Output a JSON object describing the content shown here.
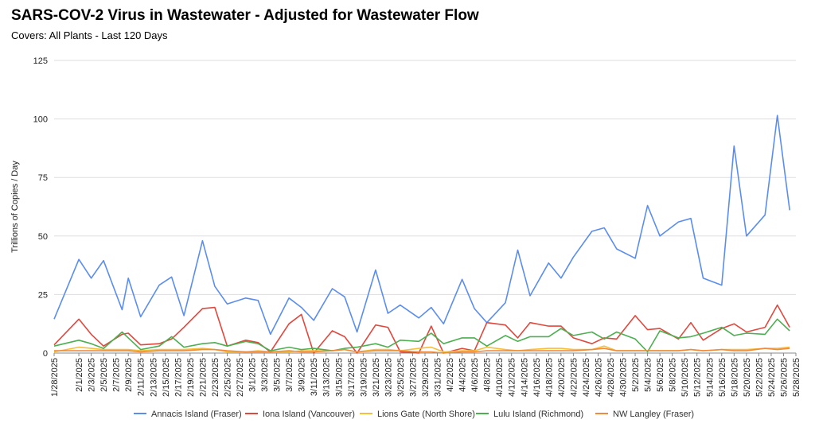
{
  "header": {
    "title": "SARS-COV-2 Virus in Wastewater - Adjusted for Wastewater Flow",
    "subtitle": "Covers: All Plants - Last 120 Days"
  },
  "chart_data": {
    "type": "line",
    "ylabel": "Trillions of Copies / Day",
    "ylim": [
      0,
      125
    ],
    "yticks": [
      0,
      25,
      50,
      75,
      100,
      125
    ],
    "grid": "horizontal",
    "legend_position": "bottom",
    "xtick_labels": [
      "1/28/2025",
      "2/1/2025",
      "2/3/2025",
      "2/5/2025",
      "2/7/2025",
      "2/9/2025",
      "2/11/2025",
      "2/13/2025",
      "2/15/2025",
      "2/17/2025",
      "2/19/2025",
      "2/21/2025",
      "2/23/2025",
      "2/25/2025",
      "2/27/2025",
      "3/1/2025",
      "3/3/2025",
      "3/5/2025",
      "3/7/2025",
      "3/9/2025",
      "3/11/2025",
      "3/13/2025",
      "3/15/2025",
      "3/17/2025",
      "3/19/2025",
      "3/21/2025",
      "3/23/2025",
      "3/25/2025",
      "3/27/2025",
      "3/29/2025",
      "3/31/2025",
      "4/2/2025",
      "4/4/2025",
      "4/6/2025",
      "4/8/2025",
      "4/10/2025",
      "4/12/2025",
      "4/14/2025",
      "4/16/2025",
      "4/18/2025",
      "4/20/2025",
      "4/22/2025",
      "4/24/2025",
      "4/26/2025",
      "4/28/2025",
      "4/30/2025",
      "5/2/2025",
      "5/4/2025",
      "5/6/2025",
      "5/8/2025",
      "5/10/2025",
      "5/12/2025",
      "5/14/2025",
      "5/16/2025",
      "5/18/2025",
      "5/20/2025",
      "5/22/2025",
      "5/24/2025",
      "5/26/2025",
      "5/28/2025"
    ],
    "series": [
      {
        "name": "Annacis Island (Fraser)",
        "color": "#5b8def",
        "points": [
          [
            "1/28/2025",
            14.5
          ],
          [
            "2/1/2025",
            40
          ],
          [
            "2/3/2025",
            32
          ],
          [
            "2/5/2025",
            39.5
          ],
          [
            "2/8/2025",
            18.5
          ],
          [
            "2/9/2025",
            32
          ],
          [
            "2/11/2025",
            15.5
          ],
          [
            "2/14/2025",
            29
          ],
          [
            "2/16/2025",
            32.5
          ],
          [
            "2/18/2025",
            16
          ],
          [
            "2/21/2025",
            48
          ],
          [
            "2/23/2025",
            28.5
          ],
          [
            "2/25/2025",
            21
          ],
          [
            "2/28/2025",
            23.5
          ],
          [
            "3/2/2025",
            22.5
          ],
          [
            "3/4/2025",
            8
          ],
          [
            "3/7/2025",
            23.5
          ],
          [
            "3/9/2025",
            19.5
          ],
          [
            "3/11/2025",
            14
          ],
          [
            "3/14/2025",
            27.5
          ],
          [
            "3/16/2025",
            24
          ],
          [
            "3/18/2025",
            9
          ],
          [
            "3/21/2025",
            35.5
          ],
          [
            "3/23/2025",
            17
          ],
          [
            "3/25/2025",
            20.5
          ],
          [
            "3/28/2025",
            15
          ],
          [
            "3/30/2025",
            19.5
          ],
          [
            "4/1/2025",
            12.5
          ],
          [
            "4/4/2025",
            31.5
          ],
          [
            "4/6/2025",
            19
          ],
          [
            "4/8/2025",
            13
          ],
          [
            "4/11/2025",
            21.5
          ],
          [
            "4/13/2025",
            44
          ],
          [
            "4/15/2025",
            24.5
          ],
          [
            "4/18/2025",
            38.5
          ],
          [
            "4/20/2025",
            32
          ],
          [
            "4/22/2025",
            41
          ],
          [
            "4/25/2025",
            52
          ],
          [
            "4/27/2025",
            53.5
          ],
          [
            "4/29/2025",
            44.5
          ],
          [
            "5/2/2025",
            40.5
          ],
          [
            "5/4/2025",
            63
          ],
          [
            "5/6/2025",
            50
          ],
          [
            "5/9/2025",
            56
          ],
          [
            "5/11/2025",
            57.5
          ],
          [
            "5/13/2025",
            32
          ],
          [
            "5/16/2025",
            29
          ],
          [
            "5/18/2025",
            88.5
          ],
          [
            "5/20/2025",
            50
          ],
          [
            "5/23/2025",
            59
          ],
          [
            "5/25/2025",
            101.5
          ],
          [
            "5/27/2025",
            61
          ]
        ]
      },
      {
        "name": "Iona Island (Vancouver)",
        "color": "#e0483e",
        "points": [
          [
            "1/28/2025",
            3.5
          ],
          [
            "2/1/2025",
            14.5
          ],
          [
            "2/3/2025",
            8
          ],
          [
            "2/5/2025",
            3
          ],
          [
            "2/8/2025",
            8
          ],
          [
            "2/9/2025",
            8.5
          ],
          [
            "2/11/2025",
            3.5
          ],
          [
            "2/14/2025",
            4
          ],
          [
            "2/16/2025",
            6
          ],
          [
            "2/18/2025",
            11
          ],
          [
            "2/21/2025",
            19
          ],
          [
            "2/23/2025",
            19.5
          ],
          [
            "2/25/2025",
            3
          ],
          [
            "2/28/2025",
            5.5
          ],
          [
            "3/2/2025",
            4.5
          ],
          [
            "3/4/2025",
            0.5
          ],
          [
            "3/7/2025",
            12.5
          ],
          [
            "3/9/2025",
            16.5
          ],
          [
            "3/11/2025",
            0
          ],
          [
            "3/14/2025",
            9.5
          ],
          [
            "3/16/2025",
            7
          ],
          [
            "3/18/2025",
            0
          ],
          [
            "3/21/2025",
            12
          ],
          [
            "3/23/2025",
            11
          ],
          [
            "3/25/2025",
            0.5
          ],
          [
            "3/28/2025",
            0
          ],
          [
            "3/30/2025",
            11.5
          ],
          [
            "4/1/2025",
            0
          ],
          [
            "4/4/2025",
            2
          ],
          [
            "4/6/2025",
            1
          ],
          [
            "4/8/2025",
            13
          ],
          [
            "4/11/2025",
            12
          ],
          [
            "4/13/2025",
            6.5
          ],
          [
            "4/15/2025",
            13
          ],
          [
            "4/18/2025",
            11.5
          ],
          [
            "4/20/2025",
            11.5
          ],
          [
            "4/22/2025",
            6.5
          ],
          [
            "4/25/2025",
            4
          ],
          [
            "4/27/2025",
            6.5
          ],
          [
            "4/29/2025",
            6
          ],
          [
            "5/2/2025",
            16
          ],
          [
            "5/4/2025",
            10
          ],
          [
            "5/6/2025",
            10.5
          ],
          [
            "5/9/2025",
            6
          ],
          [
            "5/11/2025",
            13
          ],
          [
            "5/13/2025",
            5.5
          ],
          [
            "5/16/2025",
            10.5
          ],
          [
            "5/18/2025",
            12.5
          ],
          [
            "5/20/2025",
            9
          ],
          [
            "5/23/2025",
            11
          ],
          [
            "5/25/2025",
            20.5
          ],
          [
            "5/27/2025",
            11
          ]
        ]
      },
      {
        "name": "Lions Gate (North Shore)",
        "color": "#f5bf3c",
        "points": [
          [
            "1/28/2025",
            0.5
          ],
          [
            "2/1/2025",
            2.5
          ],
          [
            "2/3/2025",
            2
          ],
          [
            "2/5/2025",
            1.5
          ],
          [
            "2/8/2025",
            1.5
          ],
          [
            "2/9/2025",
            1.5
          ],
          [
            "2/11/2025",
            1
          ],
          [
            "2/14/2025",
            1.5
          ],
          [
            "2/16/2025",
            1.5
          ],
          [
            "2/18/2025",
            1.5
          ],
          [
            "2/21/2025",
            2
          ],
          [
            "2/23/2025",
            1.5
          ],
          [
            "2/25/2025",
            0.5
          ],
          [
            "2/28/2025",
            0.5
          ],
          [
            "3/2/2025",
            1
          ],
          [
            "3/4/2025",
            0.5
          ],
          [
            "3/7/2025",
            0.5
          ],
          [
            "3/9/2025",
            1
          ],
          [
            "3/11/2025",
            1
          ],
          [
            "3/14/2025",
            1
          ],
          [
            "3/16/2025",
            1.5
          ],
          [
            "3/18/2025",
            0.5
          ],
          [
            "3/21/2025",
            1.5
          ],
          [
            "3/23/2025",
            1.5
          ],
          [
            "3/25/2025",
            1
          ],
          [
            "3/28/2025",
            2
          ],
          [
            "3/30/2025",
            2.5
          ],
          [
            "4/1/2025",
            0.5
          ],
          [
            "4/4/2025",
            1
          ],
          [
            "4/6/2025",
            1
          ],
          [
            "4/8/2025",
            2.5
          ],
          [
            "4/11/2025",
            1.5
          ],
          [
            "4/13/2025",
            1
          ],
          [
            "4/15/2025",
            1.5
          ],
          [
            "4/18/2025",
            2
          ],
          [
            "4/20/2025",
            2
          ],
          [
            "4/22/2025",
            1.5
          ],
          [
            "4/25/2025",
            1.5
          ],
          [
            "4/27/2025",
            3
          ],
          [
            "4/29/2025",
            1
          ],
          [
            "5/2/2025",
            1
          ],
          [
            "5/4/2025",
            1
          ],
          [
            "5/6/2025",
            1
          ],
          [
            "5/9/2025",
            1
          ],
          [
            "5/11/2025",
            1.5
          ],
          [
            "5/13/2025",
            1
          ],
          [
            "5/16/2025",
            1.5
          ],
          [
            "5/18/2025",
            1.5
          ],
          [
            "5/20/2025",
            1.5
          ],
          [
            "5/23/2025",
            2
          ],
          [
            "5/25/2025",
            2
          ],
          [
            "5/27/2025",
            2.5
          ]
        ]
      },
      {
        "name": "Lulu Island (Richmond)",
        "color": "#4caf50",
        "points": [
          [
            "1/28/2025",
            3
          ],
          [
            "2/1/2025",
            5.5
          ],
          [
            "2/3/2025",
            4
          ],
          [
            "2/5/2025",
            2
          ],
          [
            "2/8/2025",
            9
          ],
          [
            "2/9/2025",
            6.5
          ],
          [
            "2/11/2025",
            1.5
          ],
          [
            "2/14/2025",
            3
          ],
          [
            "2/16/2025",
            7
          ],
          [
            "2/18/2025",
            2.5
          ],
          [
            "2/21/2025",
            4
          ],
          [
            "2/23/2025",
            4.5
          ],
          [
            "2/25/2025",
            3
          ],
          [
            "2/28/2025",
            5
          ],
          [
            "3/2/2025",
            4
          ],
          [
            "3/4/2025",
            1
          ],
          [
            "3/7/2025",
            2.5
          ],
          [
            "3/9/2025",
            1.5
          ],
          [
            "3/11/2025",
            2
          ],
          [
            "3/14/2025",
            1
          ],
          [
            "3/16/2025",
            2
          ],
          [
            "3/18/2025",
            2.5
          ],
          [
            "3/21/2025",
            4
          ],
          [
            "3/23/2025",
            2.5
          ],
          [
            "3/25/2025",
            5.5
          ],
          [
            "3/28/2025",
            5
          ],
          [
            "3/30/2025",
            8.5
          ],
          [
            "4/1/2025",
            4
          ],
          [
            "4/4/2025",
            6.5
          ],
          [
            "4/6/2025",
            6.5
          ],
          [
            "4/8/2025",
            3
          ],
          [
            "4/11/2025",
            7.5
          ],
          [
            "4/13/2025",
            5
          ],
          [
            "4/15/2025",
            7
          ],
          [
            "4/18/2025",
            7
          ],
          [
            "4/20/2025",
            10.5
          ],
          [
            "4/22/2025",
            7.5
          ],
          [
            "4/25/2025",
            9
          ],
          [
            "4/27/2025",
            6
          ],
          [
            "4/29/2025",
            9
          ],
          [
            "5/2/2025",
            6
          ],
          [
            "5/4/2025",
            0.5
          ],
          [
            "5/6/2025",
            9.5
          ],
          [
            "5/9/2025",
            6.5
          ],
          [
            "5/11/2025",
            7
          ],
          [
            "5/13/2025",
            8.5
          ],
          [
            "5/16/2025",
            11
          ],
          [
            "5/18/2025",
            7.5
          ],
          [
            "5/20/2025",
            8.5
          ],
          [
            "5/23/2025",
            8
          ],
          [
            "5/25/2025",
            14.5
          ],
          [
            "5/27/2025",
            9.5
          ]
        ]
      },
      {
        "name": "NW Langley (Fraser)",
        "color": "#f08a3c",
        "points": [
          [
            "1/28/2025",
            1
          ],
          [
            "2/1/2025",
            1
          ],
          [
            "2/3/2025",
            1
          ],
          [
            "2/5/2025",
            1
          ],
          [
            "2/8/2025",
            1
          ],
          [
            "2/9/2025",
            1
          ],
          [
            "2/11/2025",
            0.5
          ],
          [
            "2/14/2025",
            1
          ],
          [
            "2/16/2025",
            1
          ],
          [
            "2/18/2025",
            1
          ],
          [
            "2/21/2025",
            1.5
          ],
          [
            "2/23/2025",
            1.5
          ],
          [
            "2/25/2025",
            1
          ],
          [
            "2/28/2025",
            0.5
          ],
          [
            "3/2/2025",
            0.5
          ],
          [
            "3/4/2025",
            0.5
          ],
          [
            "3/7/2025",
            1
          ],
          [
            "3/9/2025",
            0.5
          ],
          [
            "3/11/2025",
            0.5
          ],
          [
            "3/14/2025",
            1
          ],
          [
            "3/16/2025",
            1.5
          ],
          [
            "3/18/2025",
            0.5
          ],
          [
            "3/21/2025",
            1
          ],
          [
            "3/23/2025",
            1
          ],
          [
            "3/25/2025",
            1
          ],
          [
            "3/28/2025",
            0.5
          ],
          [
            "3/30/2025",
            0.5
          ],
          [
            "4/1/2025",
            0
          ],
          [
            "4/4/2025",
            0.5
          ],
          [
            "4/6/2025",
            0.5
          ],
          [
            "4/8/2025",
            1
          ],
          [
            "4/11/2025",
            1
          ],
          [
            "4/13/2025",
            1
          ],
          [
            "4/15/2025",
            1
          ],
          [
            "4/18/2025",
            1
          ],
          [
            "4/20/2025",
            1
          ],
          [
            "4/22/2025",
            1
          ],
          [
            "4/25/2025",
            1.5
          ],
          [
            "4/27/2025",
            2
          ],
          [
            "4/29/2025",
            1
          ],
          [
            "5/2/2025",
            1
          ],
          [
            "5/4/2025",
            1
          ],
          [
            "5/6/2025",
            1
          ],
          [
            "5/9/2025",
            1
          ],
          [
            "5/11/2025",
            1.5
          ],
          [
            "5/13/2025",
            1
          ],
          [
            "5/16/2025",
            1.5
          ],
          [
            "5/18/2025",
            1
          ],
          [
            "5/20/2025",
            1
          ],
          [
            "5/23/2025",
            2
          ],
          [
            "5/25/2025",
            1.5
          ],
          [
            "5/27/2025",
            2
          ]
        ]
      }
    ]
  }
}
